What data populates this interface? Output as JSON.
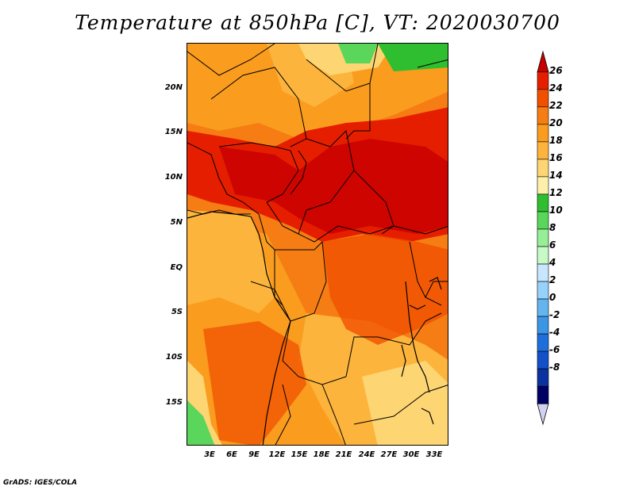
{
  "title": "Temperature at 850hPa [C], VT: 2020030700",
  "credit": "GrADS: IGES/COLA",
  "lat_labels": [
    "20N",
    "15N",
    "10N",
    "5N",
    "EQ",
    "5S",
    "10S",
    "15S"
  ],
  "lon_labels": [
    "3E",
    "6E",
    "9E",
    "12E",
    "15E",
    "18E",
    "21E",
    "24E",
    "27E",
    "30E",
    "33E"
  ],
  "colorbar": {
    "labels": [
      "26",
      "24",
      "22",
      "20",
      "18",
      "16",
      "14",
      "12",
      "10",
      "8",
      "6",
      "4",
      "2",
      "0",
      "-2",
      "-4",
      "-6",
      "-8"
    ],
    "colors": [
      "#c80000",
      "#e61e00",
      "#f05000",
      "#f57d14",
      "#fa9c1e",
      "#fcb43c",
      "#fdd573",
      "#fdf0aa",
      "#2fbe2f",
      "#5ad65a",
      "#96ee96",
      "#c8fac8",
      "#c8e6ff",
      "#96d2fa",
      "#64b4f0",
      "#3c96e6",
      "#1e6edc",
      "#1450c8",
      "#0a32a0",
      "#000064",
      "#d2d2f0"
    ]
  }
}
